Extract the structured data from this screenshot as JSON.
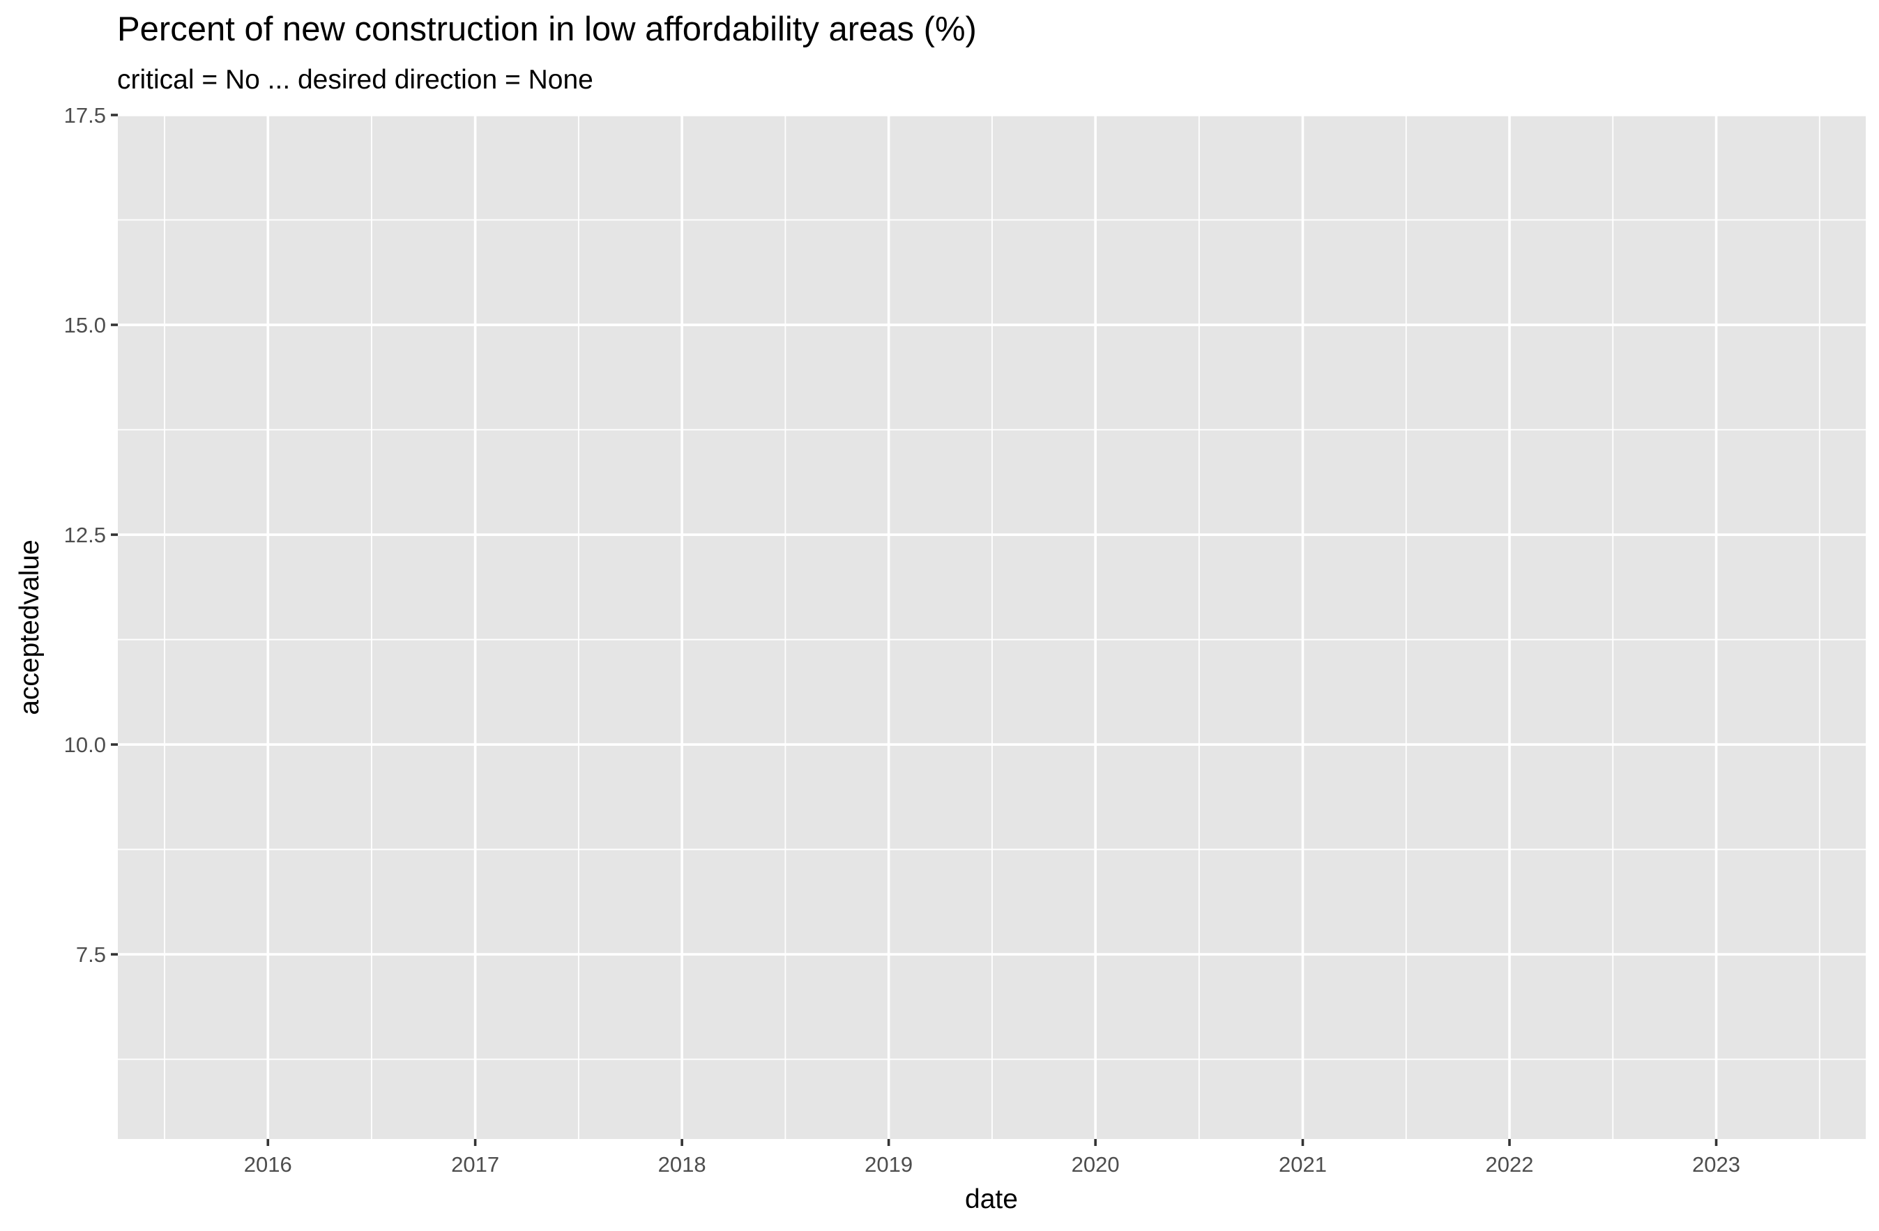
{
  "chart_data": {
    "type": "line",
    "title": "Percent of new construction in low affordability areas (%)",
    "subtitle": "critical = No ... desired direction = None",
    "xlabel": "date",
    "ylabel": "acceptedvalue",
    "x_ticks": [
      "2016",
      "2017",
      "2018",
      "2019",
      "2020",
      "2021",
      "2022",
      "2023"
    ],
    "xlim": [
      "2015-04-11",
      "2023-09-22"
    ],
    "y_ticks": [
      7.5,
      10.0,
      12.5,
      15.0,
      17.5
    ],
    "y_tick_labels": [
      "7.5",
      "10.0",
      "12.5",
      "15.0",
      "17.5"
    ],
    "ylim": [
      5.3,
      17.5
    ],
    "grid": true,
    "series": [],
    "colors": {
      "panel_background": "#e5e5e5",
      "grid": "#ffffff",
      "tick_label": "#4d4d4d",
      "tick_mark": "#333333"
    }
  }
}
